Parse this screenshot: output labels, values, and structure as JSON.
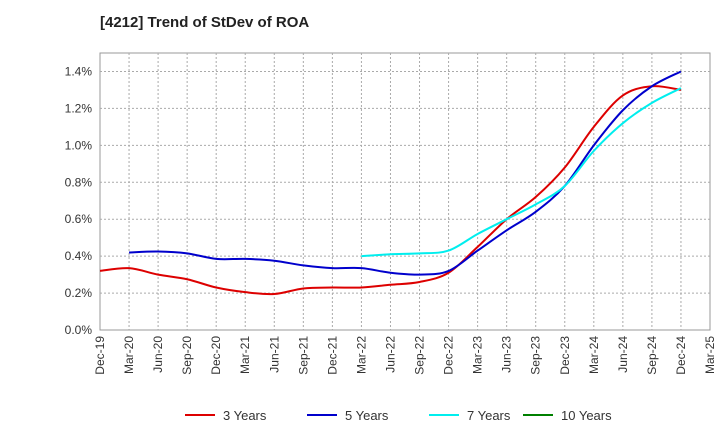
{
  "chart_data": {
    "type": "line",
    "title": "[4212]  Trend of StDev of ROA",
    "xlabel": "",
    "ylabel": "",
    "ylim": [
      0.0,
      1.5
    ],
    "yticks": [
      "0.0%",
      "0.2%",
      "0.4%",
      "0.6%",
      "0.8%",
      "1.0%",
      "1.2%",
      "1.4%"
    ],
    "ytick_values": [
      0.0,
      0.2,
      0.4,
      0.6,
      0.8,
      1.0,
      1.2,
      1.4
    ],
    "xticks": [
      "Dec-19",
      "Mar-20",
      "Jun-20",
      "Sep-20",
      "Dec-20",
      "Mar-21",
      "Jun-21",
      "Sep-21",
      "Dec-21",
      "Mar-22",
      "Jun-22",
      "Sep-22",
      "Dec-22",
      "Mar-23",
      "Jun-23",
      "Sep-23",
      "Dec-23",
      "Mar-24",
      "Jun-24",
      "Sep-24",
      "Dec-24",
      "Mar-25"
    ],
    "grid": true,
    "legend_position": "bottom",
    "series": [
      {
        "name": "3 Years",
        "color": "#dd0000",
        "x": [
          "Dec-19",
          "Mar-20",
          "Jun-20",
          "Sep-20",
          "Dec-20",
          "Mar-21",
          "Jun-21",
          "Sep-21",
          "Dec-21",
          "Mar-22",
          "Jun-22",
          "Sep-22",
          "Dec-22",
          "Mar-23",
          "Jun-23",
          "Sep-23",
          "Dec-23",
          "Mar-24",
          "Jun-24",
          "Sep-24",
          "Dec-24"
        ],
        "values": [
          0.32,
          0.335,
          0.3,
          0.275,
          0.23,
          0.205,
          0.195,
          0.225,
          0.23,
          0.23,
          0.245,
          0.26,
          0.31,
          0.45,
          0.6,
          0.72,
          0.88,
          1.1,
          1.27,
          1.32,
          1.3
        ]
      },
      {
        "name": "5 Years",
        "color": "#0000cc",
        "x": [
          "Mar-20",
          "Jun-20",
          "Sep-20",
          "Dec-20",
          "Mar-21",
          "Jun-21",
          "Sep-21",
          "Dec-21",
          "Mar-22",
          "Jun-22",
          "Sep-22",
          "Dec-22",
          "Mar-23",
          "Jun-23",
          "Sep-23",
          "Dec-23",
          "Mar-24",
          "Jun-24",
          "Sep-24",
          "Dec-24"
        ],
        "values": [
          0.42,
          0.425,
          0.415,
          0.385,
          0.385,
          0.375,
          0.35,
          0.335,
          0.335,
          0.31,
          0.3,
          0.32,
          0.43,
          0.54,
          0.64,
          0.78,
          1.0,
          1.19,
          1.32,
          1.4
        ]
      },
      {
        "name": "7 Years",
        "color": "#00eeee",
        "x": [
          "Mar-22",
          "Jun-22",
          "Sep-22",
          "Dec-22",
          "Mar-23",
          "Jun-23",
          "Sep-23",
          "Dec-23",
          "Mar-24",
          "Jun-24",
          "Sep-24",
          "Dec-24"
        ],
        "values": [
          0.4,
          0.41,
          0.415,
          0.43,
          0.52,
          0.6,
          0.68,
          0.78,
          0.97,
          1.12,
          1.23,
          1.31
        ]
      },
      {
        "name": "10 Years",
        "color": "#008000",
        "x": [],
        "values": []
      }
    ]
  }
}
